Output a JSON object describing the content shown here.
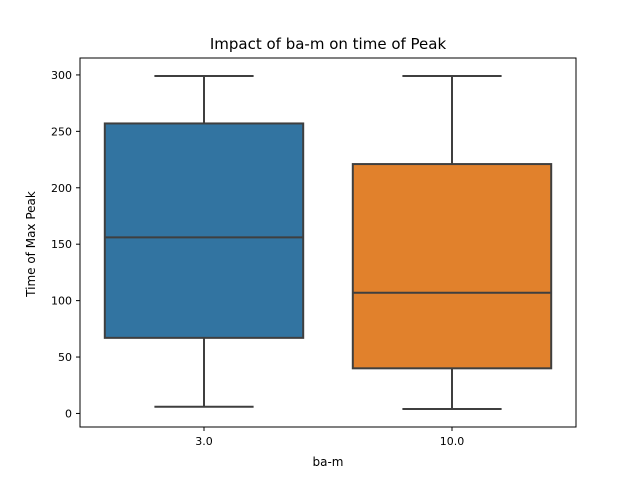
{
  "chart_data": {
    "type": "box",
    "title": "Impact of ba-m on time of Peak",
    "xlabel": "ba-m",
    "ylabel": "Time of Max Peak",
    "categories": [
      "3.0",
      "10.0"
    ],
    "ylim": [
      -12,
      315
    ],
    "yticks": [
      0,
      50,
      100,
      150,
      200,
      250,
      300
    ],
    "grid": false,
    "boxes": [
      {
        "category": "3.0",
        "color": "#3274a1",
        "whisker_low": 6,
        "q1": 67,
        "median": 156,
        "q3": 257,
        "whisker_high": 299
      },
      {
        "category": "10.0",
        "color": "#e1812c",
        "whisker_low": 4,
        "q1": 40,
        "median": 107,
        "q3": 221,
        "whisker_high": 299
      }
    ]
  }
}
